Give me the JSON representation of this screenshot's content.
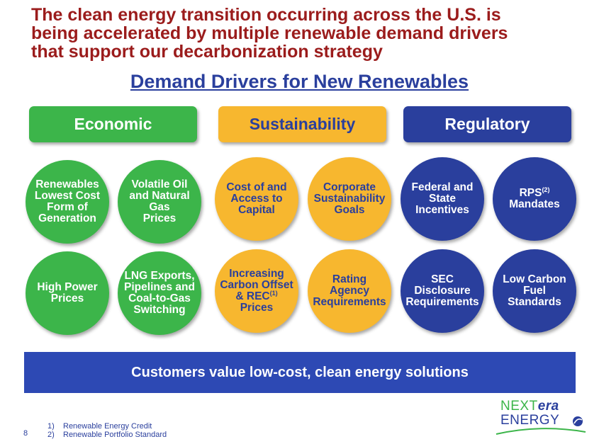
{
  "title": {
    "line1": "The clean energy transition occurring across the U.S. is",
    "line2": "being accelerated by multiple renewable demand drivers",
    "line3": "that support our decarbonization strategy"
  },
  "subtitle": "Demand Drivers for New Renewables",
  "categories": {
    "economic": "Economic",
    "sustainability": "Sustainability",
    "regulatory": "Regulatory"
  },
  "drivers": {
    "economic": [
      [
        "Renewables",
        "Lowest Cost",
        "Form of",
        "Generation"
      ],
      [
        "Volatile Oil",
        "and Natural",
        "Gas",
        "Prices"
      ],
      [
        "High Power",
        "Prices"
      ],
      [
        "LNG Exports,",
        "Pipelines and",
        "Coal-to-Gas",
        "Switching"
      ]
    ],
    "sustainability": [
      [
        "Cost of and",
        "Access to",
        "Capital"
      ],
      [
        "Corporate",
        "Sustainability",
        "Goals"
      ],
      [
        "Increasing",
        "Carbon Offset",
        "& REC",
        "Prices"
      ],
      [
        "Rating",
        "Agency",
        "Requirements"
      ]
    ],
    "regulatory": [
      [
        "Federal and",
        "State",
        "Incentives"
      ],
      [
        "RPS",
        "Mandates"
      ],
      [
        "SEC",
        "Disclosure",
        "Requirements"
      ],
      [
        "Low Carbon",
        "Fuel",
        "Standards"
      ]
    ]
  },
  "footnote_marks": {
    "rec": "(1)",
    "rps": "(2)"
  },
  "banner": "Customers value low-cost, clean energy solutions",
  "page_number": "8",
  "footnotes": [
    {
      "num": "1)",
      "text": "Renewable Energy Credit"
    },
    {
      "num": "2)",
      "text": "Renewable Portfolio Standard"
    }
  ],
  "logo": {
    "next": "NEXT",
    "era": "era",
    "energy": "ENERGY"
  },
  "colors": {
    "green": "#3cb54a",
    "yellow": "#f7b72f",
    "blue": "#2a3f9d",
    "title": "#9b1c1c",
    "banner": "#2d49b4"
  }
}
